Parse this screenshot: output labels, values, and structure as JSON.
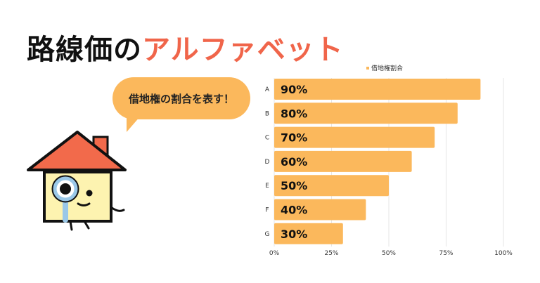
{
  "title": {
    "black": "路線価の",
    "accent": "アルファベット",
    "accent_color": "#f0654a"
  },
  "bubble": {
    "text": "借地権の割合を表す！",
    "color": "#fbb85c"
  },
  "illustration": "house-character-with-magnifying-glass",
  "chart_data": {
    "type": "bar",
    "orientation": "horizontal",
    "categories": [
      "A",
      "B",
      "C",
      "D",
      "E",
      "F",
      "G"
    ],
    "series": [
      {
        "name": "借地権割合",
        "values": [
          90,
          80,
          70,
          60,
          50,
          40,
          30
        ],
        "color": "#fbb85c"
      }
    ],
    "data_labels": [
      "90%",
      "80%",
      "70%",
      "60%",
      "50%",
      "40%",
      "30%"
    ],
    "xlim": [
      0,
      100
    ],
    "xticks": [
      "0%",
      "25%",
      "50%",
      "75%",
      "100%"
    ],
    "grid": true,
    "legend": "top"
  }
}
